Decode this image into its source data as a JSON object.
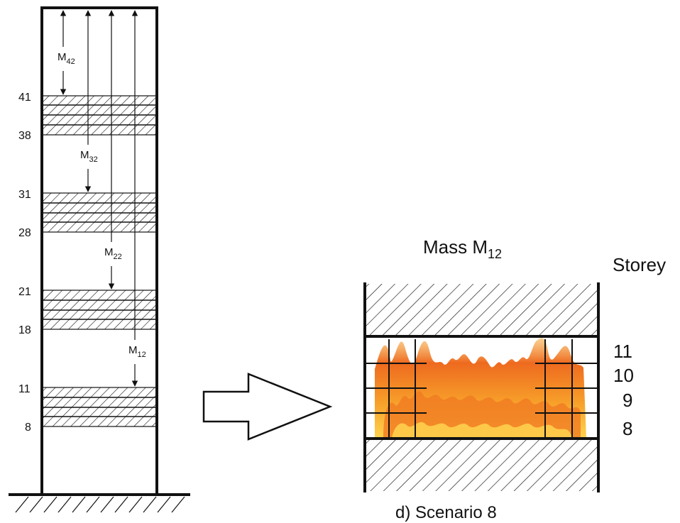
{
  "building": {
    "storey_labels": [
      "41",
      "38",
      "31",
      "28",
      "21",
      "18",
      "11",
      "8"
    ],
    "masses": [
      {
        "base": "M",
        "sub": "42"
      },
      {
        "base": "M",
        "sub": "32"
      },
      {
        "base": "M",
        "sub": "22"
      },
      {
        "base": "M",
        "sub": "12"
      }
    ]
  },
  "detail": {
    "title_base": "Mass M",
    "title_sub": "12",
    "storey_header": "Storey",
    "storey_numbers": [
      "11",
      "10",
      "9",
      "8"
    ],
    "caption": "d)  Scenario 8"
  },
  "colors": {
    "line": "#111111",
    "fire_outer": "#f5a623",
    "fire_inner": "#e8561a",
    "fire_core": "#ffd34d"
  },
  "icons": [
    "double-arrow-icon",
    "right-arrow-icon",
    "fire-icon",
    "hatch-pattern"
  ]
}
